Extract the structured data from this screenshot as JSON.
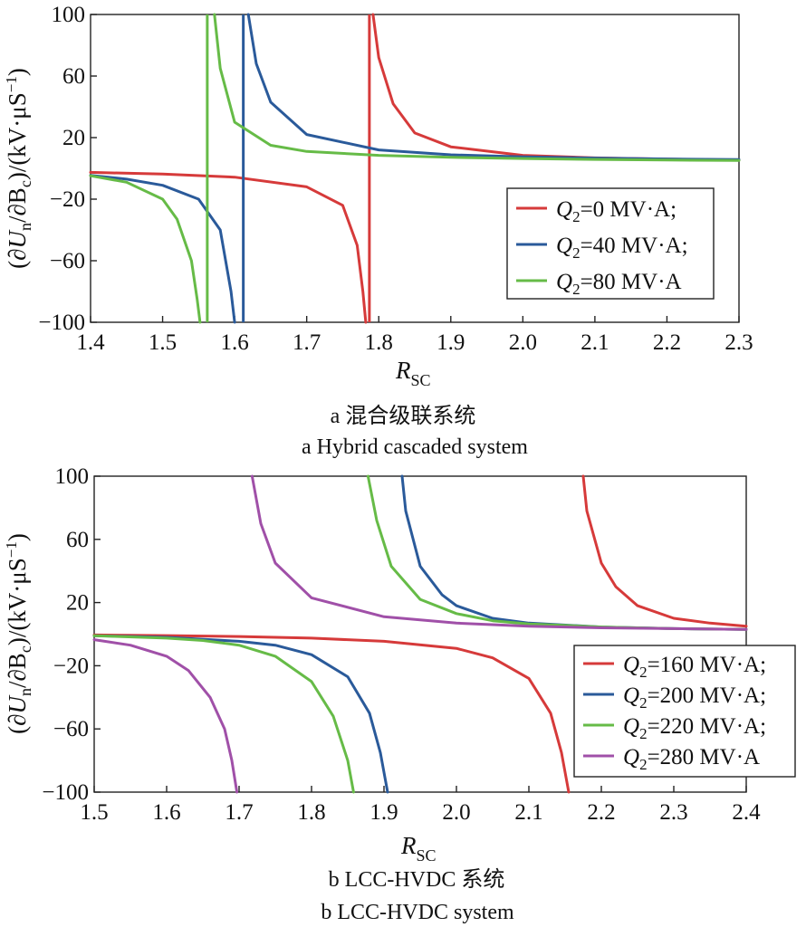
{
  "chart_data": [
    {
      "type": "line",
      "id": "a",
      "xlabel": "R_SC",
      "ylabel": "(∂U_n/∂B_c)/(kV·μS⁻¹)",
      "xlim": [
        1.4,
        2.3
      ],
      "ylim": [
        -100,
        100
      ],
      "xticks": [
        1.4,
        1.5,
        1.6,
        1.7,
        1.8,
        1.9,
        2.0,
        2.1,
        2.2,
        2.3
      ],
      "xticklabels": [
        "1.4",
        "1.5",
        "1.6",
        "1.7",
        "1.8",
        "1.9",
        "2.0",
        "2.1",
        "2.2",
        "2.3"
      ],
      "yticks": [
        -100,
        -60,
        -20,
        20,
        60,
        100
      ],
      "yticklabels": [
        "−100",
        "−60",
        "−20",
        "20",
        "60",
        "100"
      ],
      "grid": false,
      "legend_position": "lower-right",
      "caption_zh": "a  混合级联系统",
      "caption_en": "a  Hybrid cascaded system",
      "series": [
        {
          "name": "Q2=0 MV·A;",
          "color": "#d63a3a",
          "asymptote": 1.787,
          "left": {
            "x": [
              1.4,
              1.5,
              1.6,
              1.7,
              1.75,
              1.77,
              1.778,
              1.782
            ],
            "y": [
              -2.6,
              -3.7,
              -5.7,
              -12,
              -24,
              -50,
              -80,
              -100
            ]
          },
          "right": {
            "x": [
              1.792,
              1.8,
              1.82,
              1.85,
              1.9,
              2.0,
              2.1,
              2.2,
              2.3
            ],
            "y": [
              100,
              72,
              42,
              23,
              14,
              8.5,
              6.8,
              6.0,
              5.5
            ]
          }
        },
        {
          "name": "Q2=40 MV·A;",
          "color": "#2a5a9a",
          "asymptote": 1.612,
          "left": {
            "x": [
              1.4,
              1.45,
              1.5,
              1.55,
              1.58,
              1.595,
              1.6
            ],
            "y": [
              -4.5,
              -7,
              -11,
              -20,
              -40,
              -80,
              -100
            ]
          },
          "right": {
            "x": [
              1.619,
              1.63,
              1.65,
              1.7,
              1.8,
              1.9,
              2.0,
              2.1,
              2.2,
              2.3
            ],
            "y": [
              100,
              68,
              43,
              22,
              12,
              8.8,
              7.5,
              6.7,
              6.1,
              5.7
            ]
          }
        },
        {
          "name": "Q2=80 MV·A",
          "color": "#66bb47",
          "asymptote": 1.562,
          "left": {
            "x": [
              1.4,
              1.45,
              1.5,
              1.52,
              1.54,
              1.548,
              1.552
            ],
            "y": [
              -4.8,
              -9,
              -20,
              -33,
              -60,
              -85,
              -100
            ]
          },
          "right": {
            "x": [
              1.572,
              1.58,
              1.6,
              1.65,
              1.7,
              1.8,
              1.9,
              2.0,
              2.1,
              2.2,
              2.3
            ],
            "y": [
              100,
              65,
              30,
              15,
              11,
              8.5,
              7.2,
              6.4,
              5.8,
              5.4,
              5.1
            ]
          }
        }
      ]
    },
    {
      "type": "line",
      "id": "b",
      "xlabel": "R_SC",
      "ylabel": "(∂U_n/∂B_c)/(kV·μS⁻¹)",
      "xlim": [
        1.5,
        2.4
      ],
      "ylim": [
        -100,
        100
      ],
      "xticks": [
        1.5,
        1.6,
        1.7,
        1.8,
        1.9,
        2.0,
        2.1,
        2.2,
        2.3,
        2.4
      ],
      "xticklabels": [
        "1.5",
        "1.6",
        "1.7",
        "1.8",
        "1.9",
        "2.0",
        "2.1",
        "2.2",
        "2.3",
        "2.4"
      ],
      "yticks": [
        -100,
        -60,
        -20,
        20,
        60,
        100
      ],
      "yticklabels": [
        "−100",
        "−60",
        "−20",
        "20",
        "60",
        "100"
      ],
      "grid": false,
      "legend_position": "right",
      "caption_zh": "b  LCC-HVDC 系统",
      "caption_en": "b    LCC-HVDC system",
      "series": [
        {
          "name": "Q2=160 MV·A;",
          "color": "#d63a3a",
          "left": {
            "x": [
              1.5,
              1.6,
              1.7,
              1.8,
              1.9,
              2.0,
              2.05,
              2.1,
              2.13,
              2.145,
              2.155
            ],
            "y": [
              -0.5,
              -0.9,
              -1.5,
              -2.5,
              -4.5,
              -9,
              -15,
              -28,
              -50,
              -75,
              -100
            ]
          },
          "right": {
            "x": [
              2.175,
              2.18,
              2.2,
              2.22,
              2.25,
              2.3,
              2.35,
              2.4
            ],
            "y": [
              100,
              78,
              45,
              30,
              18,
              10,
              7,
              5
            ]
          }
        },
        {
          "name": "Q2=200 MV·A;",
          "color": "#2a5a9a",
          "left": {
            "x": [
              1.5,
              1.6,
              1.7,
              1.75,
              1.8,
              1.85,
              1.88,
              1.895,
              1.905
            ],
            "y": [
              -1.0,
              -2.0,
              -4.5,
              -7,
              -13,
              -27,
              -50,
              -75,
              -100
            ]
          },
          "right": {
            "x": [
              1.925,
              1.93,
              1.95,
              1.98,
              2.0,
              2.05,
              2.1,
              2.2,
              2.3,
              2.4
            ],
            "y": [
              100,
              78,
              43,
              25,
              18,
              10,
              7,
              4.5,
              3.5,
              3
            ]
          }
        },
        {
          "name": "Q2=220 MV·A;",
          "color": "#66bb47",
          "left": {
            "x": [
              1.5,
              1.6,
              1.65,
              1.7,
              1.75,
              1.8,
              1.83,
              1.85,
              1.858
            ],
            "y": [
              -1.0,
              -2.5,
              -4,
              -7,
              -14,
              -30,
              -52,
              -80,
              -100
            ]
          },
          "right": {
            "x": [
              1.878,
              1.89,
              1.91,
              1.95,
              2.0,
              2.05,
              2.1,
              2.2,
              2.3,
              2.4
            ],
            "y": [
              100,
              72,
              43,
              22,
              13,
              8.5,
              6.5,
              4.5,
              3.5,
              3
            ]
          }
        },
        {
          "name": "Q2=280 MV·A",
          "color": "#a050a8",
          "left": {
            "x": [
              1.5,
              1.55,
              1.6,
              1.63,
              1.66,
              1.68,
              1.69,
              1.697
            ],
            "y": [
              -3.5,
              -7,
              -14,
              -23,
              -40,
              -60,
              -80,
              -100
            ]
          },
          "right": {
            "x": [
              1.718,
              1.73,
              1.75,
              1.8,
              1.9,
              2.0,
              2.1,
              2.2,
              2.3,
              2.4
            ],
            "y": [
              100,
              70,
              45,
              23,
              11,
              7,
              5,
              4,
              3.5,
              3
            ]
          }
        }
      ]
    }
  ]
}
